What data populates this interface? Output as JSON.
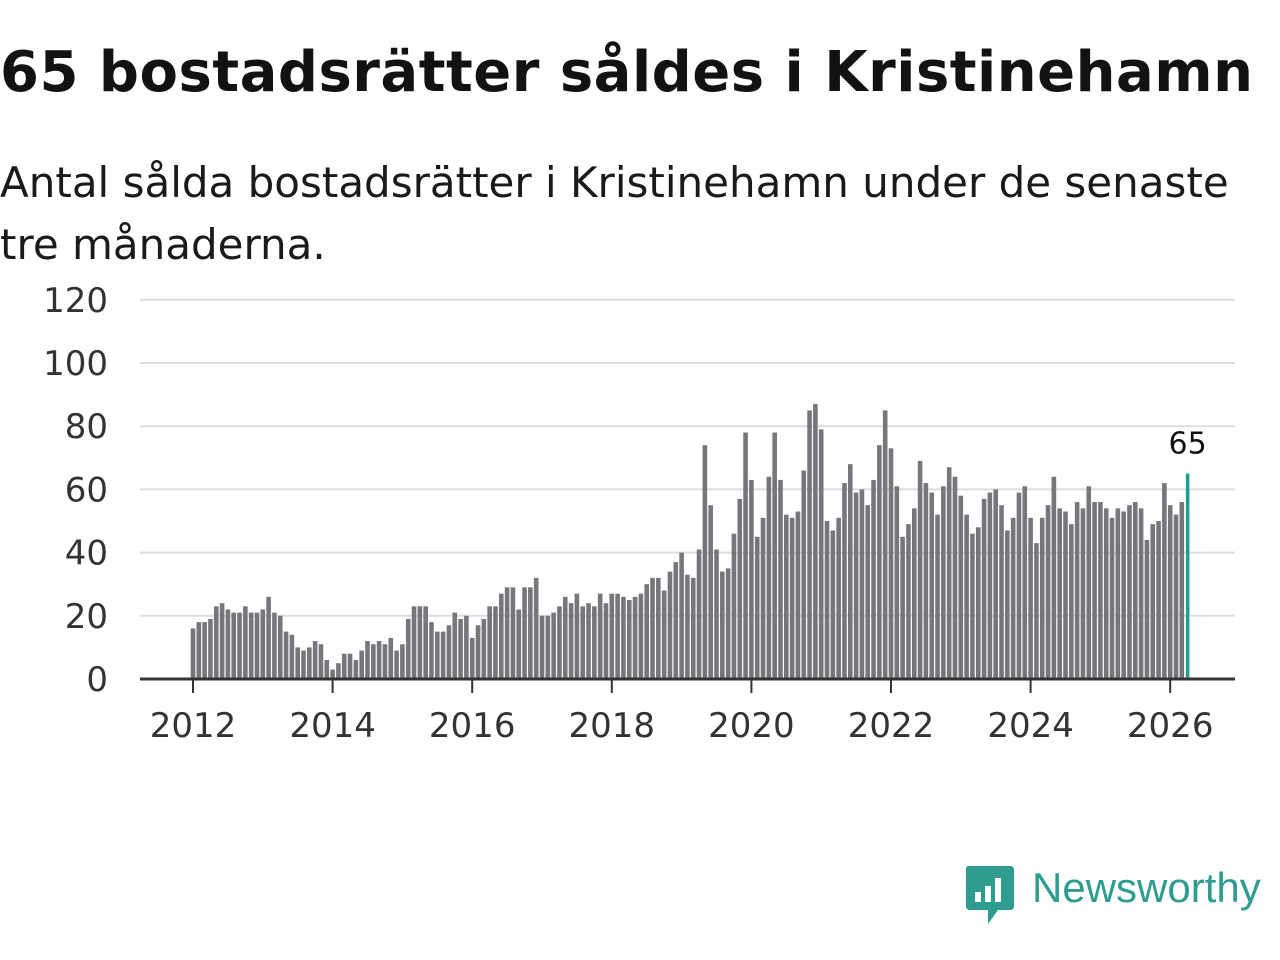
{
  "title": "65 bostadsrätter såldes i Kristinehamn",
  "subtitle": "Antal sålda bostadsrätter i Kristinehamn under de senaste tre månaderna.",
  "brand": {
    "name": "Newsworthy",
    "icon": "newsworthy-logo-icon",
    "color": "#2e9c8f"
  },
  "colors": {
    "bar": "#77767b",
    "highlight": "#1e9e8e",
    "grid": "#dddddd",
    "axis": "#333333"
  },
  "chart_data": {
    "type": "bar",
    "title": "65 bostadsrätter såldes i Kristinehamn",
    "xlabel": "",
    "ylabel": "",
    "ylim": [
      0,
      120
    ],
    "yticks": [
      0,
      20,
      40,
      60,
      80,
      100,
      120
    ],
    "xticks": [
      "2012",
      "2014",
      "2016",
      "2018",
      "2020",
      "2022",
      "2024",
      "2026"
    ],
    "x_start": "2012-01",
    "highlight_label": "65",
    "grid": true,
    "values": [
      16,
      18,
      18,
      19,
      23,
      24,
      22,
      21,
      21,
      23,
      21,
      21,
      22,
      26,
      21,
      20,
      15,
      14,
      10,
      9,
      10,
      12,
      11,
      6,
      3,
      5,
      8,
      8,
      6,
      9,
      12,
      11,
      12,
      11,
      13,
      9,
      11,
      19,
      23,
      23,
      23,
      18,
      15,
      15,
      17,
      21,
      19,
      20,
      13,
      17,
      19,
      23,
      23,
      27,
      29,
      29,
      22,
      29,
      29,
      32,
      20,
      20,
      21,
      23,
      26,
      24,
      27,
      23,
      24,
      23,
      27,
      24,
      27,
      27,
      26,
      25,
      26,
      27,
      30,
      32,
      32,
      28,
      34,
      37,
      40,
      33,
      32,
      41,
      74,
      55,
      41,
      34,
      35,
      46,
      57,
      78,
      63,
      45,
      51,
      64,
      78,
      63,
      52,
      51,
      53,
      66,
      85,
      87,
      79,
      50,
      47,
      51,
      62,
      68,
      59,
      60,
      55,
      63,
      74,
      85,
      73,
      61,
      45,
      49,
      54,
      69,
      62,
      59,
      52,
      61,
      67,
      64,
      58,
      52,
      46,
      48,
      57,
      59,
      60,
      55,
      47,
      51,
      59,
      61,
      51,
      43,
      51,
      55,
      64,
      54,
      53,
      49,
      56,
      54,
      61,
      56,
      56,
      54,
      51,
      54,
      53,
      55,
      56,
      54,
      44,
      49,
      50,
      62,
      55,
      52,
      56,
      65
    ]
  }
}
